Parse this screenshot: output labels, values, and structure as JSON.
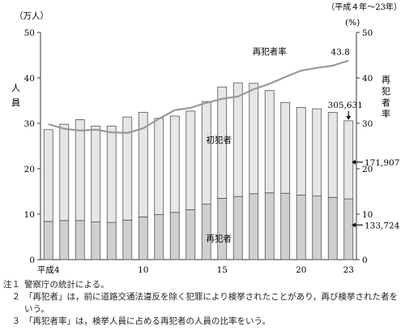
{
  "chart_data": {
    "type": "bar+line",
    "period_note": "（平成４年～23年）",
    "left_unit": "（万人）",
    "right_unit": "(%)",
    "ylabel_left": "人員",
    "ylabel_right": "再犯者率",
    "ylim_left": [
      0,
      50
    ],
    "ylim_right": [
      0,
      50
    ],
    "yticks_left": [
      "0",
      "10",
      "20",
      "30",
      "40",
      "50"
    ],
    "yticks_right": [
      "0",
      "10",
      "20",
      "30",
      "40",
      "50"
    ],
    "x_years": [
      4,
      5,
      6,
      7,
      8,
      9,
      10,
      11,
      12,
      13,
      14,
      15,
      16,
      17,
      18,
      19,
      20,
      21,
      22,
      23
    ],
    "x_tick_labels": [
      {
        "year": 4,
        "label": "平成4"
      },
      {
        "year": 10,
        "label": "10"
      },
      {
        "year": 15,
        "label": "15"
      },
      {
        "year": 20,
        "label": "20"
      },
      {
        "year": 23,
        "label": "23"
      }
    ],
    "series": [
      {
        "name": "初犯者",
        "kind": "bar-top",
        "fill": "#e6e6e6",
        "values": [
          20.2,
          21.2,
          22.2,
          21.1,
          21.2,
          22.7,
          23.0,
          21.2,
          21.2,
          21.7,
          22.6,
          24.5,
          25.0,
          24.3,
          22.5,
          20.0,
          19.3,
          19.2,
          18.7,
          17.19
        ]
      },
      {
        "name": "再犯者",
        "kind": "bar-bottom",
        "fill": "#cfcfcf",
        "values": [
          8.4,
          8.6,
          8.6,
          8.3,
          8.2,
          8.7,
          9.4,
          9.9,
          10.4,
          11.0,
          12.2,
          13.5,
          13.9,
          14.5,
          14.7,
          14.6,
          14.2,
          14.0,
          13.7,
          13.37
        ]
      },
      {
        "name": "再犯者率",
        "kind": "line",
        "stroke": "#999999",
        "values": [
          29.8,
          28.8,
          28.4,
          28.6,
          28.0,
          27.9,
          28.9,
          31.0,
          32.9,
          33.4,
          34.5,
          35.4,
          35.9,
          37.5,
          38.7,
          40.2,
          41.6,
          42.2,
          42.7,
          43.8
        ]
      }
    ],
    "annotations": {
      "total_last": "305,631",
      "first_last": "171,907",
      "repeat_last": "133,724",
      "rate_last": "43.8",
      "label_first": "初犯者",
      "label_repeat": "再犯者",
      "label_rate": "再犯者率"
    }
  },
  "notes": [
    {
      "label": "注１",
      "text": "警察庁の統計による。"
    },
    {
      "label": "　２",
      "text": "「再犯者」は，前に道路交通法違反を除く犯罪により検挙されたことがあり，再び検挙された者をいう。"
    },
    {
      "label": "　３",
      "text": "「再犯者率」は，検挙人員に占める再犯者の人員の比率をいう。"
    }
  ]
}
